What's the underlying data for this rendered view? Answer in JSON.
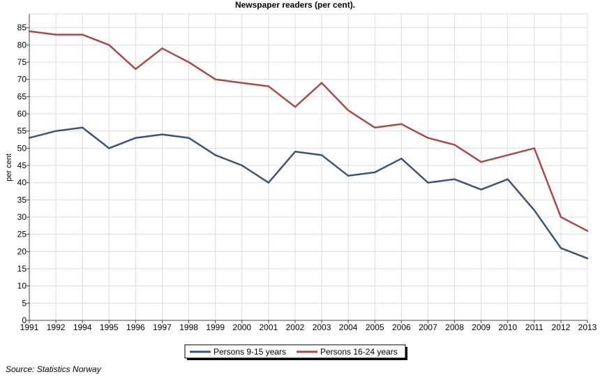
{
  "chart_data": {
    "type": "line",
    "title": "Newspaper readers (per cent).",
    "ylabel": "per cent",
    "xlabel": "",
    "x": [
      "1991",
      "1992",
      "1994",
      "1995",
      "1996",
      "1997",
      "1998",
      "1999",
      "2000",
      "2001",
      "2002",
      "2003",
      "2004",
      "2005",
      "2006",
      "2007",
      "2008",
      "2009",
      "2010",
      "2011",
      "2012",
      "2013"
    ],
    "ylim": [
      0,
      85
    ],
    "yticks": [
      0,
      5,
      10,
      15,
      20,
      25,
      30,
      35,
      40,
      45,
      50,
      55,
      60,
      65,
      70,
      75,
      80,
      85
    ],
    "grid": true,
    "legend_position": "bottom",
    "series": [
      {
        "name": "Persons 9-15 years",
        "color": "#3e5477",
        "values": [
          53,
          55,
          56,
          50,
          53,
          54,
          53,
          48,
          45,
          40,
          49,
          48,
          42,
          43,
          47,
          40,
          41,
          38,
          41,
          32,
          21,
          18
        ]
      },
      {
        "name": "Persons 16-24 years",
        "color": "#a94a4a",
        "values": [
          84,
          83,
          83,
          80,
          73,
          79,
          75,
          70,
          69,
          68,
          62,
          69,
          61,
          56,
          57,
          53,
          51,
          46,
          48,
          50,
          30,
          26
        ]
      }
    ]
  },
  "source": "Source: Statistics Norway"
}
